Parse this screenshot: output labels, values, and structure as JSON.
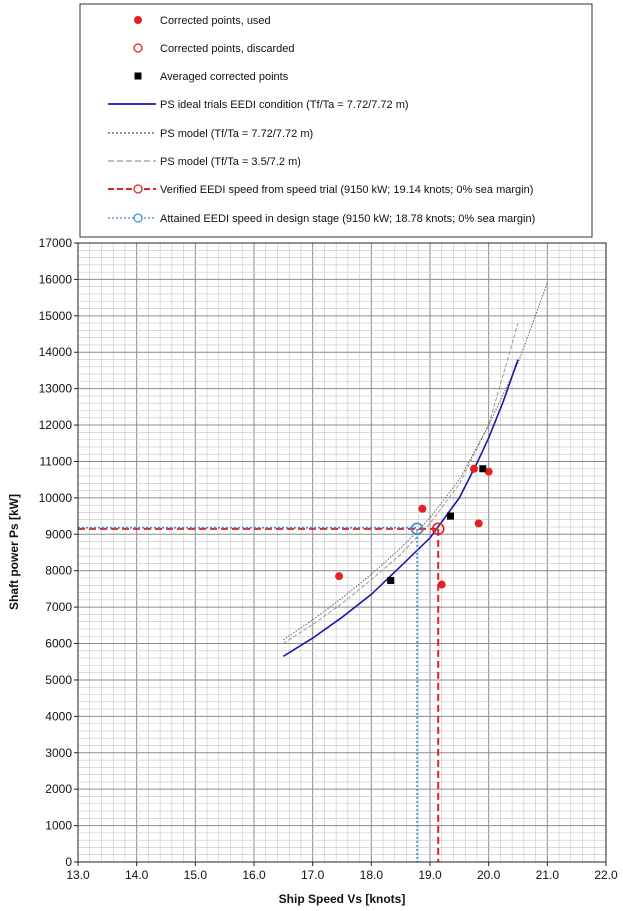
{
  "chart_data": {
    "type": "scatter",
    "title": "",
    "xlabel": "Ship Speed Vs [knots]",
    "ylabel": "Shaft power Ps [kW]",
    "xlim": [
      13.0,
      22.0
    ],
    "ylim": [
      0,
      17000
    ],
    "x_ticks": [
      13.0,
      14.0,
      15.0,
      16.0,
      17.0,
      18.0,
      19.0,
      20.0,
      21.0,
      22.0
    ],
    "x_tick_labels": [
      "13.0",
      "14.0",
      "15.0",
      "16.0",
      "17.0",
      "18.0",
      "19.0",
      "20.0",
      "21.0",
      "22.0"
    ],
    "y_ticks": [
      0,
      1000,
      2000,
      3000,
      4000,
      5000,
      6000,
      7000,
      8000,
      9000,
      10000,
      11000,
      12000,
      13000,
      14000,
      15000,
      16000,
      17000
    ],
    "y_tick_labels": [
      "0",
      "1000",
      "2000",
      "3000",
      "4000",
      "5000",
      "6000",
      "7000",
      "8000",
      "9000",
      "10000",
      "11000",
      "12000",
      "13000",
      "14000",
      "15000",
      "16000",
      "17000"
    ],
    "grid": true,
    "legend_position": "top",
    "legend": [
      {
        "label": "Corrected points, used",
        "marker": "filled-circle",
        "color": "#e32222"
      },
      {
        "label": "Corrected points, discarded",
        "marker": "open-circle",
        "color": "#e32222"
      },
      {
        "label": "Averaged corrected points",
        "marker": "filled-square",
        "color": "#000000"
      },
      {
        "label": "PS ideal trials EEDI condition (Tf/Ta = 7.72/7.72 m)",
        "line": "solid",
        "color": "#1a1aa8"
      },
      {
        "label": "PS model (Tf/Ta = 7.72/7.72 m)",
        "line": "dotted",
        "color": "#555555"
      },
      {
        "label": "PS model (Tf/Ta = 3.5/7.2 m)",
        "line": "dashed",
        "color": "#999999"
      },
      {
        "label": "Verified EEDI speed from speed trial (9150 kW; 19.14 knots; 0% sea margin)",
        "line": "dashed",
        "marker": "open-circle",
        "color": "#e32222"
      },
      {
        "label": "Attained EEDI speed in design stage (9150 kW; 18.78 knots; 0% sea margin)",
        "line": "dotted",
        "marker": "open-circle",
        "color": "#3b8fd0"
      }
    ],
    "series": [
      {
        "name": "Corrected points, used",
        "kind": "scatter",
        "points": [
          [
            17.45,
            7850
          ],
          [
            18.87,
            9700
          ],
          [
            19.2,
            7620
          ],
          [
            19.75,
            10800
          ],
          [
            19.83,
            9300
          ],
          [
            20.0,
            10720
          ]
        ]
      },
      {
        "name": "Averaged corrected points",
        "kind": "scatter",
        "points": [
          [
            18.33,
            7730
          ],
          [
            19.35,
            9500
          ],
          [
            19.9,
            10800
          ]
        ]
      },
      {
        "name": "PS ideal trials EEDI condition (Tf/Ta = 7.72/7.72 m)",
        "kind": "line",
        "points": [
          [
            16.5,
            5650
          ],
          [
            17.0,
            6150
          ],
          [
            17.5,
            6720
          ],
          [
            18.0,
            7350
          ],
          [
            18.5,
            8120
          ],
          [
            19.0,
            8900
          ],
          [
            19.5,
            10000
          ],
          [
            19.8,
            10950
          ],
          [
            20.0,
            11650
          ],
          [
            20.25,
            12650
          ],
          [
            20.5,
            13800
          ]
        ]
      },
      {
        "name": "PS model (Tf/Ta = 7.72/7.72 m)",
        "kind": "line",
        "points": [
          [
            16.5,
            6100
          ],
          [
            17.0,
            6650
          ],
          [
            17.5,
            7250
          ],
          [
            18.0,
            7900
          ],
          [
            18.5,
            8620
          ],
          [
            19.0,
            9450
          ],
          [
            19.5,
            10500
          ],
          [
            20.0,
            12000
          ],
          [
            20.5,
            13700
          ],
          [
            21.0,
            15900
          ]
        ]
      },
      {
        "name": "PS model (Tf/Ta = 3.5/7.2 m)",
        "kind": "line",
        "points": [
          [
            16.5,
            6000
          ],
          [
            17.0,
            6520
          ],
          [
            17.5,
            7100
          ],
          [
            18.0,
            7750
          ],
          [
            18.5,
            8450
          ],
          [
            19.0,
            9300
          ],
          [
            19.5,
            10380
          ],
          [
            20.0,
            12000
          ],
          [
            20.5,
            14800
          ]
        ]
      },
      {
        "name": "Verified EEDI speed from speed trial (9150 kW; 19.14 knots; 0% sea margin)",
        "kind": "guide",
        "point": [
          19.14,
          9150
        ]
      },
      {
        "name": "Attained EEDI speed in design stage (9150 kW; 18.78 knots; 0% sea margin)",
        "kind": "guide",
        "point": [
          18.78,
          9150
        ]
      }
    ]
  }
}
